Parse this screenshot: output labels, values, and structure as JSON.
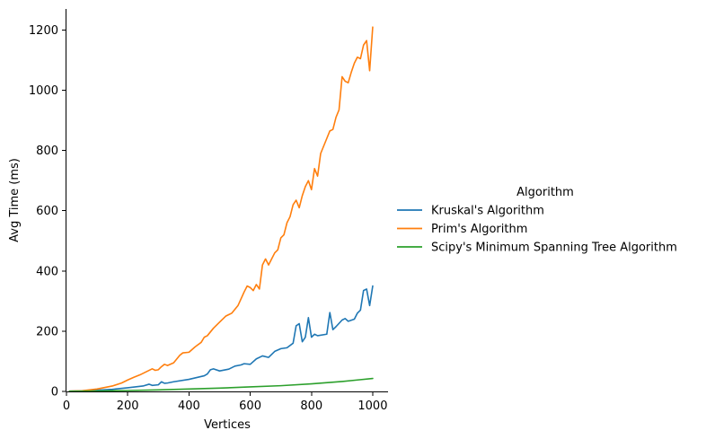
{
  "chart_data": {
    "type": "line",
    "xlabel": "Vertices",
    "ylabel": "Avg Time (ms)",
    "xlim": [
      0,
      1050
    ],
    "ylim": [
      0,
      1270
    ],
    "xticks": [
      0,
      200,
      400,
      600,
      800,
      1000
    ],
    "yticks": [
      0,
      200,
      400,
      600,
      800,
      1000,
      1200
    ],
    "grid": false,
    "legend": {
      "title": "Algorithm",
      "placement": "right"
    },
    "series": [
      {
        "name": "Kruskal's Algorithm",
        "color": "#1f77b4",
        "x": [
          10,
          50,
          100,
          150,
          200,
          250,
          270,
          280,
          300,
          310,
          320,
          330,
          350,
          400,
          450,
          460,
          470,
          480,
          500,
          530,
          550,
          570,
          580,
          600,
          620,
          640,
          660,
          680,
          700,
          720,
          740,
          750,
          760,
          770,
          780,
          790,
          800,
          810,
          820,
          850,
          860,
          870,
          880,
          900,
          910,
          920,
          940,
          950,
          960,
          970,
          980,
          990,
          1000
        ],
        "y": [
          1,
          2,
          4,
          7,
          12,
          18,
          24,
          20,
          22,
          32,
          27,
          28,
          32,
          40,
          52,
          58,
          72,
          75,
          68,
          74,
          84,
          88,
          92,
          90,
          108,
          118,
          113,
          133,
          142,
          145,
          160,
          218,
          225,
          165,
          180,
          245,
          180,
          190,
          185,
          190,
          262,
          205,
          215,
          237,
          242,
          233,
          240,
          260,
          270,
          335,
          340,
          285,
          350
        ]
      },
      {
        "name": "Prim's Algorithm",
        "color": "#ff7f0e",
        "x": [
          10,
          50,
          100,
          150,
          180,
          200,
          220,
          240,
          260,
          280,
          290,
          300,
          310,
          320,
          330,
          350,
          370,
          380,
          400,
          420,
          440,
          450,
          460,
          480,
          490,
          500,
          520,
          540,
          560,
          580,
          590,
          600,
          610,
          620,
          630,
          640,
          650,
          660,
          670,
          680,
          690,
          700,
          710,
          720,
          730,
          740,
          750,
          760,
          770,
          780,
          790,
          800,
          810,
          820,
          830,
          850,
          860,
          870,
          880,
          890,
          900,
          910,
          920,
          930,
          940,
          950,
          960,
          970,
          980,
          990,
          1000
        ],
        "y": [
          1,
          2,
          8,
          18,
          28,
          38,
          47,
          55,
          65,
          75,
          70,
          72,
          82,
          90,
          86,
          95,
          120,
          128,
          130,
          148,
          163,
          180,
          185,
          210,
          220,
          230,
          250,
          260,
          285,
          330,
          350,
          345,
          335,
          355,
          340,
          420,
          440,
          420,
          440,
          460,
          470,
          510,
          520,
          560,
          580,
          620,
          635,
          610,
          650,
          680,
          700,
          670,
          740,
          715,
          790,
          840,
          865,
          870,
          910,
          935,
          1045,
          1030,
          1025,
          1060,
          1090,
          1110,
          1105,
          1150,
          1165,
          1065,
          1210
        ]
      },
      {
        "name": "Scipy's Minimum Spanning Tree Algorithm",
        "color": "#2ca02c",
        "x": [
          10,
          100,
          200,
          300,
          400,
          500,
          600,
          700,
          800,
          900,
          950,
          1000
        ],
        "y": [
          0.5,
          1.5,
          3,
          5,
          8,
          11,
          15,
          19,
          25,
          33,
          38,
          43
        ]
      }
    ]
  }
}
